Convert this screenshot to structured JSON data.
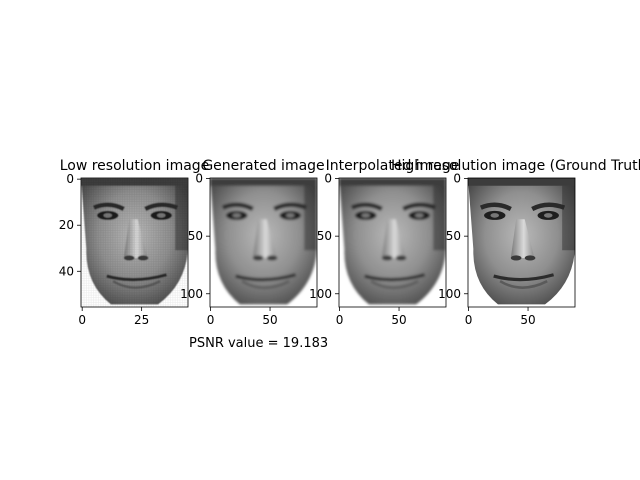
{
  "figure": {
    "caption": "PSNR value = 19.183"
  },
  "chart_data": [
    {
      "type": "image",
      "title": "Low resolution image",
      "image_size": [
        45,
        56
      ],
      "xticks": [
        0,
        25
      ],
      "yticks": [
        0,
        20,
        40
      ],
      "xlim": [
        -0.5,
        44.5
      ],
      "ylim": [
        55.5,
        -0.5
      ]
    },
    {
      "type": "image",
      "title": "Generated image",
      "image_size": [
        90,
        112
      ],
      "xticks": [
        0,
        50
      ],
      "yticks": [
        0,
        50,
        100
      ],
      "xlim": [
        -0.5,
        89.5
      ],
      "ylim": [
        111.5,
        -0.5
      ]
    },
    {
      "type": "image",
      "title": "Interpolated image",
      "image_size": [
        90,
        112
      ],
      "xticks": [
        0,
        50
      ],
      "yticks": [
        0,
        50,
        100
      ],
      "xlim": [
        -0.5,
        89.5
      ],
      "ylim": [
        111.5,
        -0.5
      ]
    },
    {
      "type": "image",
      "title": "High resolution image (Ground Truth)",
      "image_size": [
        90,
        112
      ],
      "xticks": [
        0,
        50
      ],
      "yticks": [
        0,
        50,
        100
      ],
      "xlim": [
        -0.5,
        89.5
      ],
      "ylim": [
        111.5,
        -0.5
      ]
    }
  ]
}
